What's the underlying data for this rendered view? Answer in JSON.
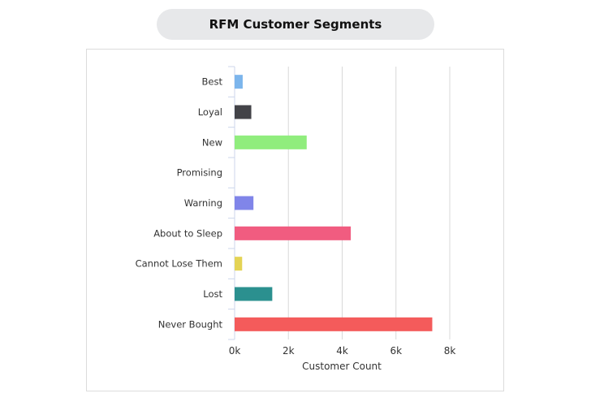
{
  "title": "RFM Customer Segments",
  "chart_data": {
    "type": "bar",
    "orientation": "horizontal",
    "categories": [
      "Best",
      "Loyal",
      "New",
      "Promising",
      "Warning",
      "About to Sleep",
      "Cannot Lose Them",
      "Lost",
      "Never Bought"
    ],
    "values": [
      300,
      620,
      2680,
      0,
      700,
      4320,
      280,
      1400,
      7350
    ],
    "colors": [
      "#7cb5ec",
      "#434348",
      "#90ed7d",
      "#f7a35c",
      "#8085e9",
      "#f15c80",
      "#e4d354",
      "#2b908f",
      "#f45b5b"
    ],
    "xlabel": "Customer Count",
    "ylabel": "",
    "xlim": [
      0,
      8000
    ],
    "x_ticks": [
      0,
      2000,
      4000,
      6000,
      8000
    ],
    "x_tick_labels": [
      "0k",
      "2k",
      "4k",
      "6k",
      "8k"
    ],
    "grid": "vertical",
    "legend": "none"
  }
}
